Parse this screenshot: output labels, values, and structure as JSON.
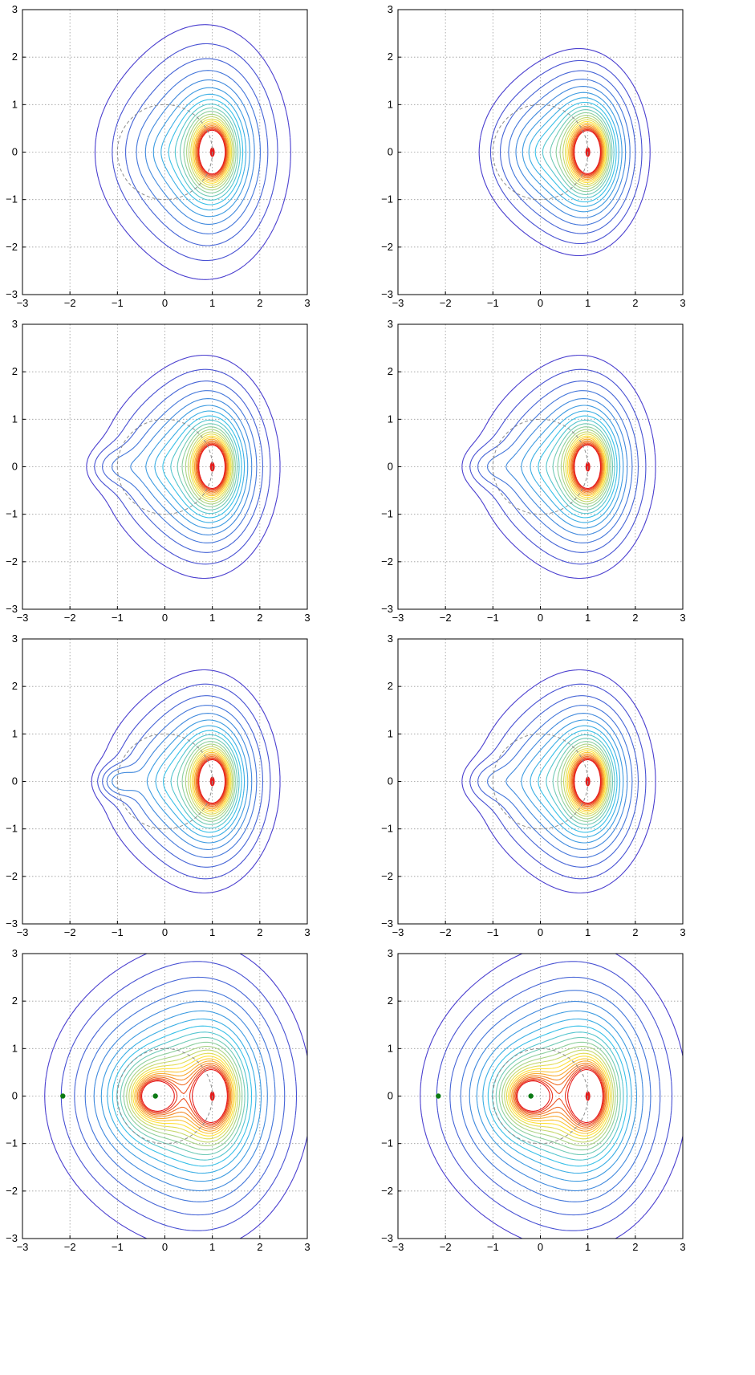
{
  "chart_data": [
    {
      "type": "contour",
      "row": 1,
      "col": 1,
      "xlim": [
        -3,
        3
      ],
      "ylim": [
        -3,
        3
      ],
      "xticks": [
        -3,
        -2,
        -1,
        0,
        1,
        2,
        3
      ],
      "yticks": [
        -3,
        -2,
        -1,
        0,
        1,
        2,
        3
      ],
      "grid": true,
      "reference_circle": {
        "center": [
          0,
          0
        ],
        "radius": 1,
        "style": "dashed"
      },
      "singularities": [
        [
          1,
          0
        ]
      ],
      "marked_points": [],
      "contour_variant": "crescent-open"
    },
    {
      "type": "contour",
      "row": 1,
      "col": 2,
      "xlim": [
        -3,
        3
      ],
      "ylim": [
        -3,
        3
      ],
      "xticks": [
        -3,
        -2,
        -1,
        0,
        1,
        2,
        3
      ],
      "yticks": [
        -3,
        -2,
        -1,
        0,
        1,
        2,
        3
      ],
      "grid": true,
      "reference_circle": {
        "center": [
          0,
          0
        ],
        "radius": 1,
        "style": "dashed"
      },
      "singularities": [
        [
          1,
          0
        ]
      ],
      "marked_points": [],
      "contour_variant": "crescent-closed"
    },
    {
      "type": "contour",
      "row": 2,
      "col": 1,
      "xlim": [
        -3,
        3
      ],
      "ylim": [
        -3,
        3
      ],
      "xticks": [
        -3,
        -2,
        -1,
        0,
        1,
        2,
        3
      ],
      "yticks": [
        -3,
        -2,
        -1,
        0,
        1,
        2,
        3
      ],
      "grid": true,
      "reference_circle": {
        "center": [
          0,
          0
        ],
        "radius": 1,
        "style": "dashed"
      },
      "singularities": [
        [
          1,
          0
        ]
      ],
      "marked_points": [],
      "contour_variant": "kidney-cusp"
    },
    {
      "type": "contour",
      "row": 2,
      "col": 2,
      "xlim": [
        -3,
        3
      ],
      "ylim": [
        -3,
        3
      ],
      "xticks": [
        -3,
        -2,
        -1,
        0,
        1,
        2,
        3
      ],
      "yticks": [
        -3,
        -2,
        -1,
        0,
        1,
        2,
        3
      ],
      "grid": true,
      "reference_circle": {
        "center": [
          0,
          0
        ],
        "radius": 1,
        "style": "dashed"
      },
      "singularities": [
        [
          1,
          0
        ]
      ],
      "marked_points": [],
      "contour_variant": "kidney-cusp"
    },
    {
      "type": "contour",
      "row": 3,
      "col": 1,
      "xlim": [
        -3,
        3
      ],
      "ylim": [
        -3,
        3
      ],
      "xticks": [
        -3,
        -2,
        -1,
        0,
        1,
        2,
        3
      ],
      "yticks": [
        -3,
        -2,
        -1,
        0,
        1,
        2,
        3
      ],
      "grid": true,
      "reference_circle": {
        "center": [
          0,
          0
        ],
        "radius": 1,
        "style": "dashed"
      },
      "singularities": [
        [
          1,
          0
        ]
      ],
      "marked_points": [],
      "contour_variant": "kidney-island"
    },
    {
      "type": "contour",
      "row": 3,
      "col": 2,
      "xlim": [
        -3,
        3
      ],
      "ylim": [
        -3,
        3
      ],
      "xticks": [
        -3,
        -2,
        -1,
        0,
        1,
        2,
        3
      ],
      "yticks": [
        -3,
        -2,
        -1,
        0,
        1,
        2,
        3
      ],
      "grid": true,
      "reference_circle": {
        "center": [
          0,
          0
        ],
        "radius": 1,
        "style": "dashed"
      },
      "singularities": [
        [
          1,
          0
        ]
      ],
      "marked_points": [],
      "contour_variant": "kidney-cusp"
    },
    {
      "type": "contour",
      "row": 4,
      "col": 1,
      "xlim": [
        -3,
        3
      ],
      "ylim": [
        -3,
        3
      ],
      "xticks": [
        -3,
        -2,
        -1,
        0,
        1,
        2,
        3
      ],
      "yticks": [
        -3,
        -2,
        -1,
        0,
        1,
        2,
        3
      ],
      "grid": true,
      "reference_circle": {
        "center": [
          0,
          0
        ],
        "radius": 1,
        "style": "dashed"
      },
      "singularities": [
        [
          1,
          0
        ]
      ],
      "marked_points": [
        [
          -2.15,
          0
        ],
        [
          -0.2,
          0
        ]
      ],
      "contour_variant": "dipole"
    },
    {
      "type": "contour",
      "row": 4,
      "col": 2,
      "xlim": [
        -3,
        3
      ],
      "ylim": [
        -3,
        3
      ],
      "xticks": [
        -3,
        -2,
        -1,
        0,
        1,
        2,
        3
      ],
      "yticks": [
        -3,
        -2,
        -1,
        0,
        1,
        2,
        3
      ],
      "grid": true,
      "reference_circle": {
        "center": [
          0,
          0
        ],
        "radius": 1,
        "style": "dashed"
      },
      "singularities": [
        [
          1,
          0
        ]
      ],
      "marked_points": [
        [
          -2.15,
          0
        ],
        [
          -0.2,
          0
        ]
      ],
      "contour_variant": "dipole"
    }
  ],
  "colors": {
    "contour_low": "#4b3fcf",
    "contour_mid": "#38c0e8",
    "contour_high": "#ffe23a",
    "contour_peak": "#e51c1c",
    "grid": "#9a9a9a",
    "reference_circle": "#8c8c8c",
    "marked_point": "#0b7a14",
    "axes": "#000000"
  }
}
